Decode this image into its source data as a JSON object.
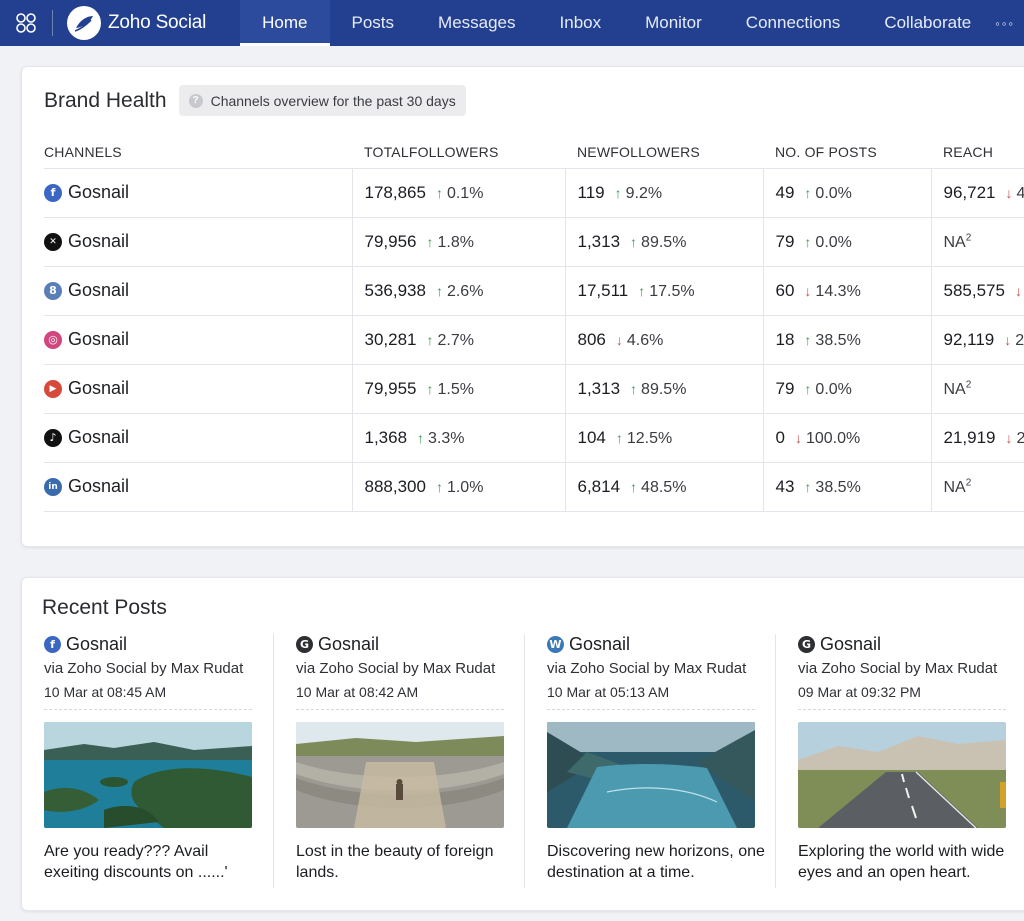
{
  "nav": {
    "brand": "Zoho Social",
    "items": [
      "Home",
      "Posts",
      "Messages",
      "Inbox",
      "Monitor",
      "Connections",
      "Collaborate"
    ],
    "active": "Home",
    "more": "◦◦◦"
  },
  "brand_health": {
    "title": "Brand Health",
    "chip": "Channels overview for the past 30 days",
    "columns": [
      "CHANNELS",
      "TOTALFOLLOWERS",
      "NEWFOLLOWERS",
      "NO. OF POSTS",
      "REACH"
    ],
    "rows": [
      {
        "network": "facebook",
        "channel": "Gosnail",
        "total": "178,865",
        "total_chg": "0.1%",
        "total_dir": "up",
        "new": "119",
        "new_chg": "9.2%",
        "new_dir": "up",
        "posts": "49",
        "posts_chg": "0.0%",
        "posts_dir": "up",
        "reach": "96,721",
        "reach_chg": "4",
        "reach_dir": "down"
      },
      {
        "network": "x",
        "channel": "Gosnail",
        "total": "79,956",
        "total_chg": "1.8%",
        "total_dir": "up",
        "new": "1,313",
        "new_chg": "89.5%",
        "new_dir": "up",
        "posts": "79",
        "posts_chg": "0.0%",
        "posts_dir": "up",
        "reach": "NA",
        "reach_note": "2"
      },
      {
        "network": "zoho",
        "channel": "Gosnail",
        "total": "536,938",
        "total_chg": "2.6%",
        "total_dir": "up",
        "new": "17,511",
        "new_chg": "17.5%",
        "new_dir": "up",
        "posts": "60",
        "posts_chg": "14.3%",
        "posts_dir": "down",
        "reach": "585,575",
        "reach_chg": "",
        "reach_dir": "down"
      },
      {
        "network": "instagram",
        "channel": "Gosnail",
        "total": "30,281",
        "total_chg": "2.7%",
        "total_dir": "up",
        "new": "806",
        "new_chg": "4.6%",
        "new_dir": "down",
        "posts": "18",
        "posts_chg": "38.5%",
        "posts_dir": "up",
        "reach": "92,119",
        "reach_chg": "2",
        "reach_dir": "down"
      },
      {
        "network": "youtube",
        "channel": "Gosnail",
        "total": "79,955",
        "total_chg": "1.5%",
        "total_dir": "up",
        "new": "1,313",
        "new_chg": "89.5%",
        "new_dir": "up",
        "posts": "79",
        "posts_chg": "0.0%",
        "posts_dir": "up",
        "reach": "NA",
        "reach_note": "2"
      },
      {
        "network": "tiktok",
        "channel": "Gosnail",
        "total": "1,368",
        "total_chg": "3.3%",
        "total_dir": "up",
        "new": "104",
        "new_chg": "12.5%",
        "new_dir": "up",
        "posts": "0",
        "posts_chg": "100.0%",
        "posts_dir": "down",
        "reach": "21,919",
        "reach_chg": "2",
        "reach_dir": "down"
      },
      {
        "network": "linkedin",
        "channel": "Gosnail",
        "total": "888,300",
        "total_chg": "1.0%",
        "total_dir": "up",
        "new": "6,814",
        "new_chg": "48.5%",
        "new_dir": "up",
        "posts": "43",
        "posts_chg": "38.5%",
        "posts_dir": "up",
        "reach": "NA",
        "reach_note": "2"
      }
    ]
  },
  "recent_posts": {
    "title": "Recent Posts",
    "posts": [
      {
        "network": "facebook",
        "channel": "Gosnail",
        "via": "via Zoho Social by Max Rudat",
        "time": "10 Mar at 08:45 AM",
        "image": "islands-lagoon",
        "text": "Are you ready??? Avail exeiting discounts on ......'"
      },
      {
        "network": "google",
        "channel": "Gosnail",
        "via": "via Zoho Social by Max Rudat",
        "time": "10 Mar at 08:42 AM",
        "image": "ancient-amphitheater",
        "text": "Lost in the beauty of foreign lands."
      },
      {
        "network": "wordpress",
        "channel": "Gosnail",
        "via": "via Zoho Social by Max Rudat",
        "time": "10 Mar at 05:13 AM",
        "image": "fjord-river",
        "text": "Discovering new horizons, one destination at a time."
      },
      {
        "network": "google",
        "channel": "Gosnail",
        "via": "via Zoho Social by Max Rudat",
        "time": "09 Mar at 09:32 PM",
        "image": "open-road",
        "text": "Exploring the world with wide eyes and an open heart."
      }
    ]
  },
  "colors": {
    "nav_bg": "#22408f",
    "up": "#3f9b5a",
    "down": "#c85252"
  }
}
